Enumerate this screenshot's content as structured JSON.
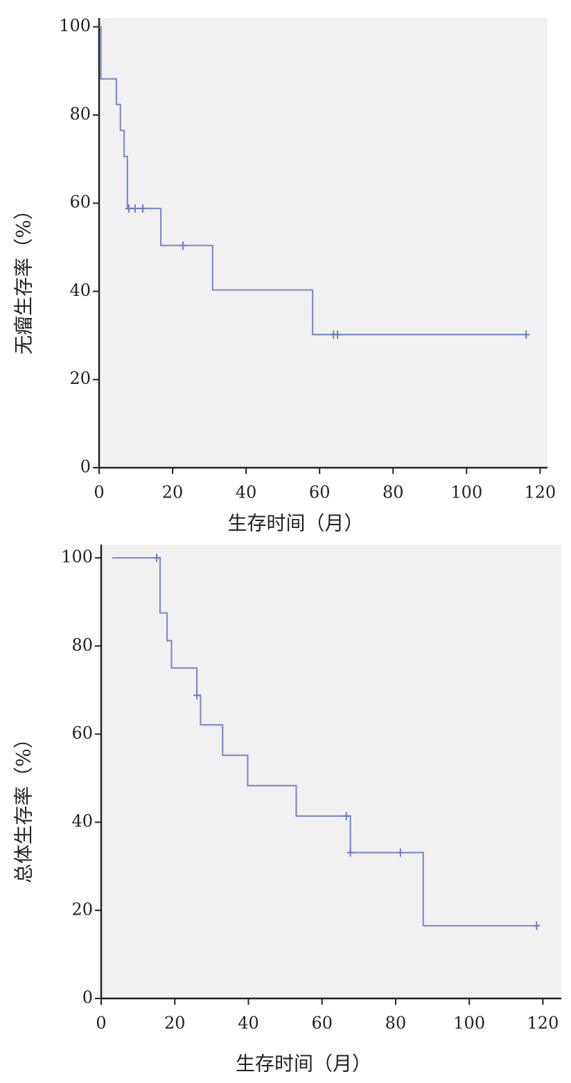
{
  "chart_data": [
    {
      "type": "step",
      "color": "#6a7cc4",
      "y_label": "无瘤生存率（%）",
      "x_label": "生存时间（月）",
      "xlim": [
        0,
        122
      ],
      "ylim": [
        0,
        102
      ],
      "xticks": [
        0,
        20,
        40,
        60,
        80,
        100,
        120
      ],
      "yticks": [
        0,
        20,
        40,
        60,
        80,
        100
      ],
      "x": [
        0,
        0.5,
        4.7,
        5.8,
        6.8,
        7.7,
        16.8,
        30.9,
        58.1,
        116.2
      ],
      "values": [
        100,
        88.2,
        82.4,
        76.5,
        70.6,
        58.8,
        50.4,
        40.3,
        30.2,
        30.2
      ],
      "censor_x": [
        8.1,
        9.8,
        11.9,
        22.8,
        63.8,
        64.9,
        116.2
      ],
      "censor_values": [
        58.8,
        58.8,
        58.8,
        50.4,
        30.2,
        30.2,
        30.2
      ]
    },
    {
      "type": "step",
      "color": "#6a7cc4",
      "y_label": "总体生存率（%）",
      "x_label": "生存时间（月）",
      "xlim": [
        0,
        125
      ],
      "ylim": [
        0,
        103
      ],
      "xticks": [
        0,
        20,
        40,
        60,
        80,
        100,
        120
      ],
      "yticks": [
        0,
        20,
        40,
        60,
        80,
        100
      ],
      "x": [
        3,
        16,
        17.9,
        19.1,
        26.0,
        27.0,
        33.0,
        39.8,
        53.0,
        67.7,
        87.5,
        118.3
      ],
      "values": [
        100,
        87.5,
        81.2,
        75,
        68.8,
        62.1,
        55.2,
        48.3,
        41.4,
        33.1,
        16.5,
        16.5
      ],
      "censor_x": [
        15.1,
        26.0,
        66.6,
        67.7,
        81.3,
        118.3
      ],
      "censor_values": [
        100,
        68.8,
        41.4,
        33.1,
        33.1,
        16.5
      ]
    }
  ]
}
